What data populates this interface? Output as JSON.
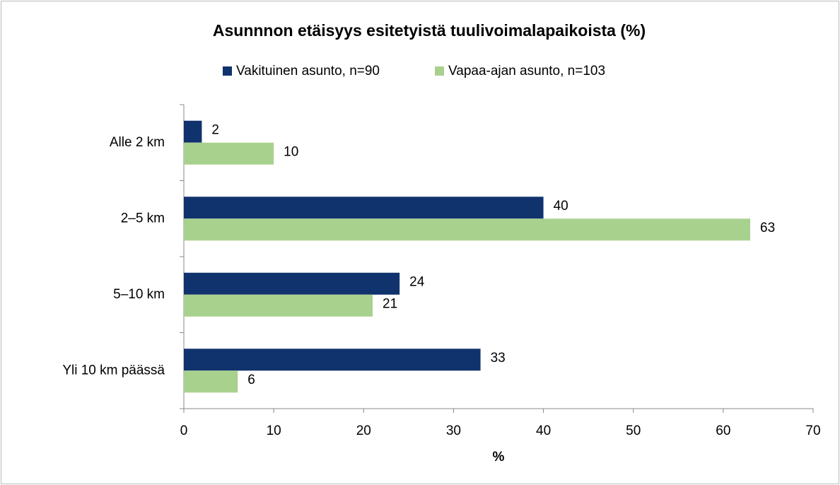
{
  "chart_data": {
    "type": "barh",
    "title": "Asunnnon etäisyys esitetyistä tuulivoimalapaikoista (%)",
    "categories": [
      "Alle 2 km",
      "2–5 km",
      "5–10 km",
      "Yli 10 km päässä"
    ],
    "series": [
      {
        "name": "Vakituinen asunto, n=90",
        "color": "#10336e",
        "values": [
          2,
          40,
          24,
          33
        ]
      },
      {
        "name": "Vapaa-ajan asunto, n=103",
        "color": "#a9d18e",
        "values": [
          10,
          63,
          21,
          6
        ]
      }
    ],
    "xlabel": "%",
    "xlim": [
      0,
      70
    ],
    "xticks": [
      0,
      10,
      20,
      30,
      40,
      50,
      60,
      70
    ],
    "grid": false,
    "legend": "top"
  }
}
